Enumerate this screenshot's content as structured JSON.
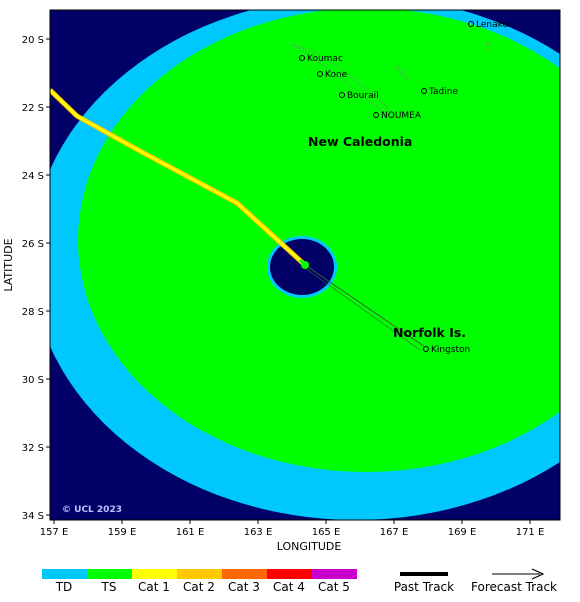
{
  "map": {
    "axes": {
      "xlabel": "LONGITUDE",
      "ylabel": "LATITUDE",
      "x_ticks": [
        "157 E",
        "159 E",
        "161 E",
        "163 E",
        "165 E",
        "167 E",
        "169 E",
        "171 E"
      ],
      "y_ticks": [
        "20 S",
        "22 S",
        "24 S",
        "26 S",
        "28 S",
        "30 S",
        "32 S",
        "34 S"
      ]
    },
    "copyright": "© UCL 2023",
    "regions": [
      {
        "label": "New Caledonia"
      },
      {
        "label": "Norfolk Is."
      }
    ],
    "places": [
      {
        "label": "Lenakel"
      },
      {
        "label": "Koumac"
      },
      {
        "label": "Kone"
      },
      {
        "label": "Bourail"
      },
      {
        "label": "Tadine"
      },
      {
        "label": "NOUMEA"
      },
      {
        "label": "Kingston"
      }
    ],
    "colors": {
      "background": "#000066",
      "td": "#00c8ff",
      "ts": "#00ff00",
      "eye": "#000066",
      "past_track_cat1": "#ffff00",
      "past_track_cat2": "#ffc800"
    }
  },
  "legend": {
    "categories": [
      {
        "label": "TD",
        "color": "#00c8ff"
      },
      {
        "label": "TS",
        "color": "#00ff00"
      },
      {
        "label": "Cat 1",
        "color": "#ffff00"
      },
      {
        "label": "Cat 2",
        "color": "#ffc800"
      },
      {
        "label": "Cat 3",
        "color": "#ff6600"
      },
      {
        "label": "Cat 4",
        "color": "#ff0000"
      },
      {
        "label": "Cat 5",
        "color": "#cc00cc"
      }
    ],
    "past_track_label": "Past Track",
    "forecast_track_label": "Forecast Track"
  }
}
